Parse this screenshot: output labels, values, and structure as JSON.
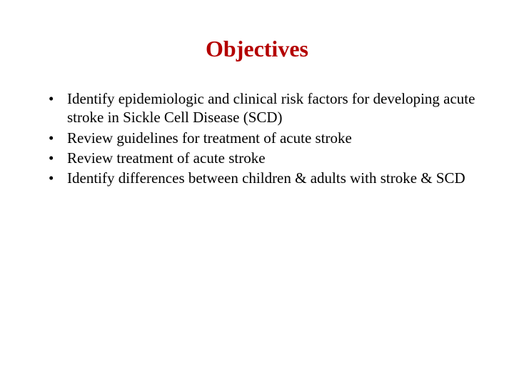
{
  "slide": {
    "title": "Objectives",
    "title_color": "#b40000",
    "title_fontsize": 32,
    "body_color": "#000000",
    "body_fontsize": 21,
    "line_height": 1.25,
    "background_color": "#ffffff",
    "font_family": "Times New Roman",
    "bullets": [
      "Identify epidemiologic and clinical risk factors for developing acute stroke in Sickle Cell Disease (SCD)",
      "Review guidelines for treatment of acute stroke",
      "Review treatment of acute stroke",
      "Identify differences between children & adults with stroke & SCD"
    ]
  }
}
